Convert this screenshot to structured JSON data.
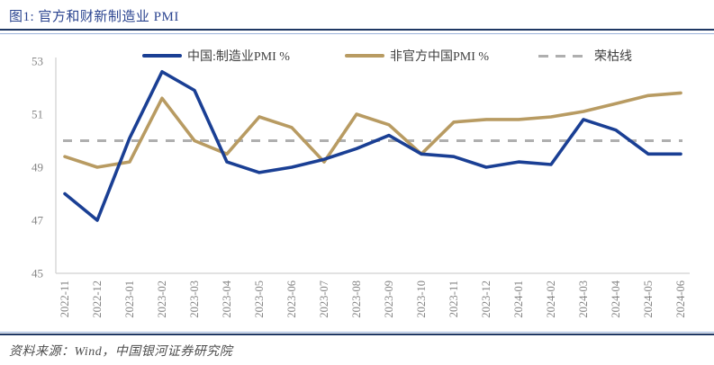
{
  "header": {
    "title": "图1: 官方和财新制造业 PMI"
  },
  "footer": {
    "source": "资料来源：Wind，中国银河证券研究院"
  },
  "legend": {
    "items": [
      {
        "label": "中国:制造业PMI %",
        "color": "#1A3F94",
        "style": "solid"
      },
      {
        "label": "非官方中国PMI %",
        "color": "#B89B62",
        "style": "solid"
      },
      {
        "label": "荣枯线",
        "color": "#AFAFAF",
        "style": "dashed"
      }
    ]
  },
  "colors": {
    "title_navy": "#2B4490",
    "rule_navy": "#1F3864",
    "rule_light_blue": "#9BB3DA",
    "official_line": "#1A3F94",
    "caixin_line": "#B89B62",
    "breakeven_line": "#AFAFAF",
    "axis_line": "#D8D8D8",
    "axis_label": "#858585"
  },
  "chart_data": {
    "type": "line",
    "title": "官方和财新制造业 PMI",
    "xlabel": "",
    "ylabel": "",
    "ylim": [
      45,
      53
    ],
    "yticks": [
      53,
      51,
      49,
      47,
      45
    ],
    "grid": false,
    "legend_position": "top",
    "categories": [
      "2022-11",
      "2022-12",
      "2023-01",
      "2023-02",
      "2023-03",
      "2023-04",
      "2023-05",
      "2023-06",
      "2023-07",
      "2023-08",
      "2023-09",
      "2023-10",
      "2023-11",
      "2023-12",
      "2024-01",
      "2024-02",
      "2024-03",
      "2024-04",
      "2024-05",
      "2024-06"
    ],
    "series": [
      {
        "name": "中国:制造业PMI %",
        "color": "#1A3F94",
        "values": [
          48.0,
          47.0,
          50.1,
          52.6,
          51.9,
          49.2,
          48.8,
          49.0,
          49.3,
          49.7,
          50.2,
          49.5,
          49.4,
          49.0,
          49.2,
          49.1,
          50.8,
          50.4,
          49.5,
          49.5
        ]
      },
      {
        "name": "非官方中国PMI %",
        "color": "#B89B62",
        "values": [
          49.4,
          49.0,
          49.2,
          51.6,
          50.0,
          49.5,
          50.9,
          50.5,
          49.2,
          51.0,
          50.6,
          49.5,
          50.7,
          50.8,
          50.8,
          50.9,
          51.1,
          51.4,
          51.7,
          51.8
        ]
      }
    ],
    "reference_line": {
      "name": "荣枯线",
      "value": 50,
      "color": "#AFAFAF",
      "dashed": true
    }
  }
}
